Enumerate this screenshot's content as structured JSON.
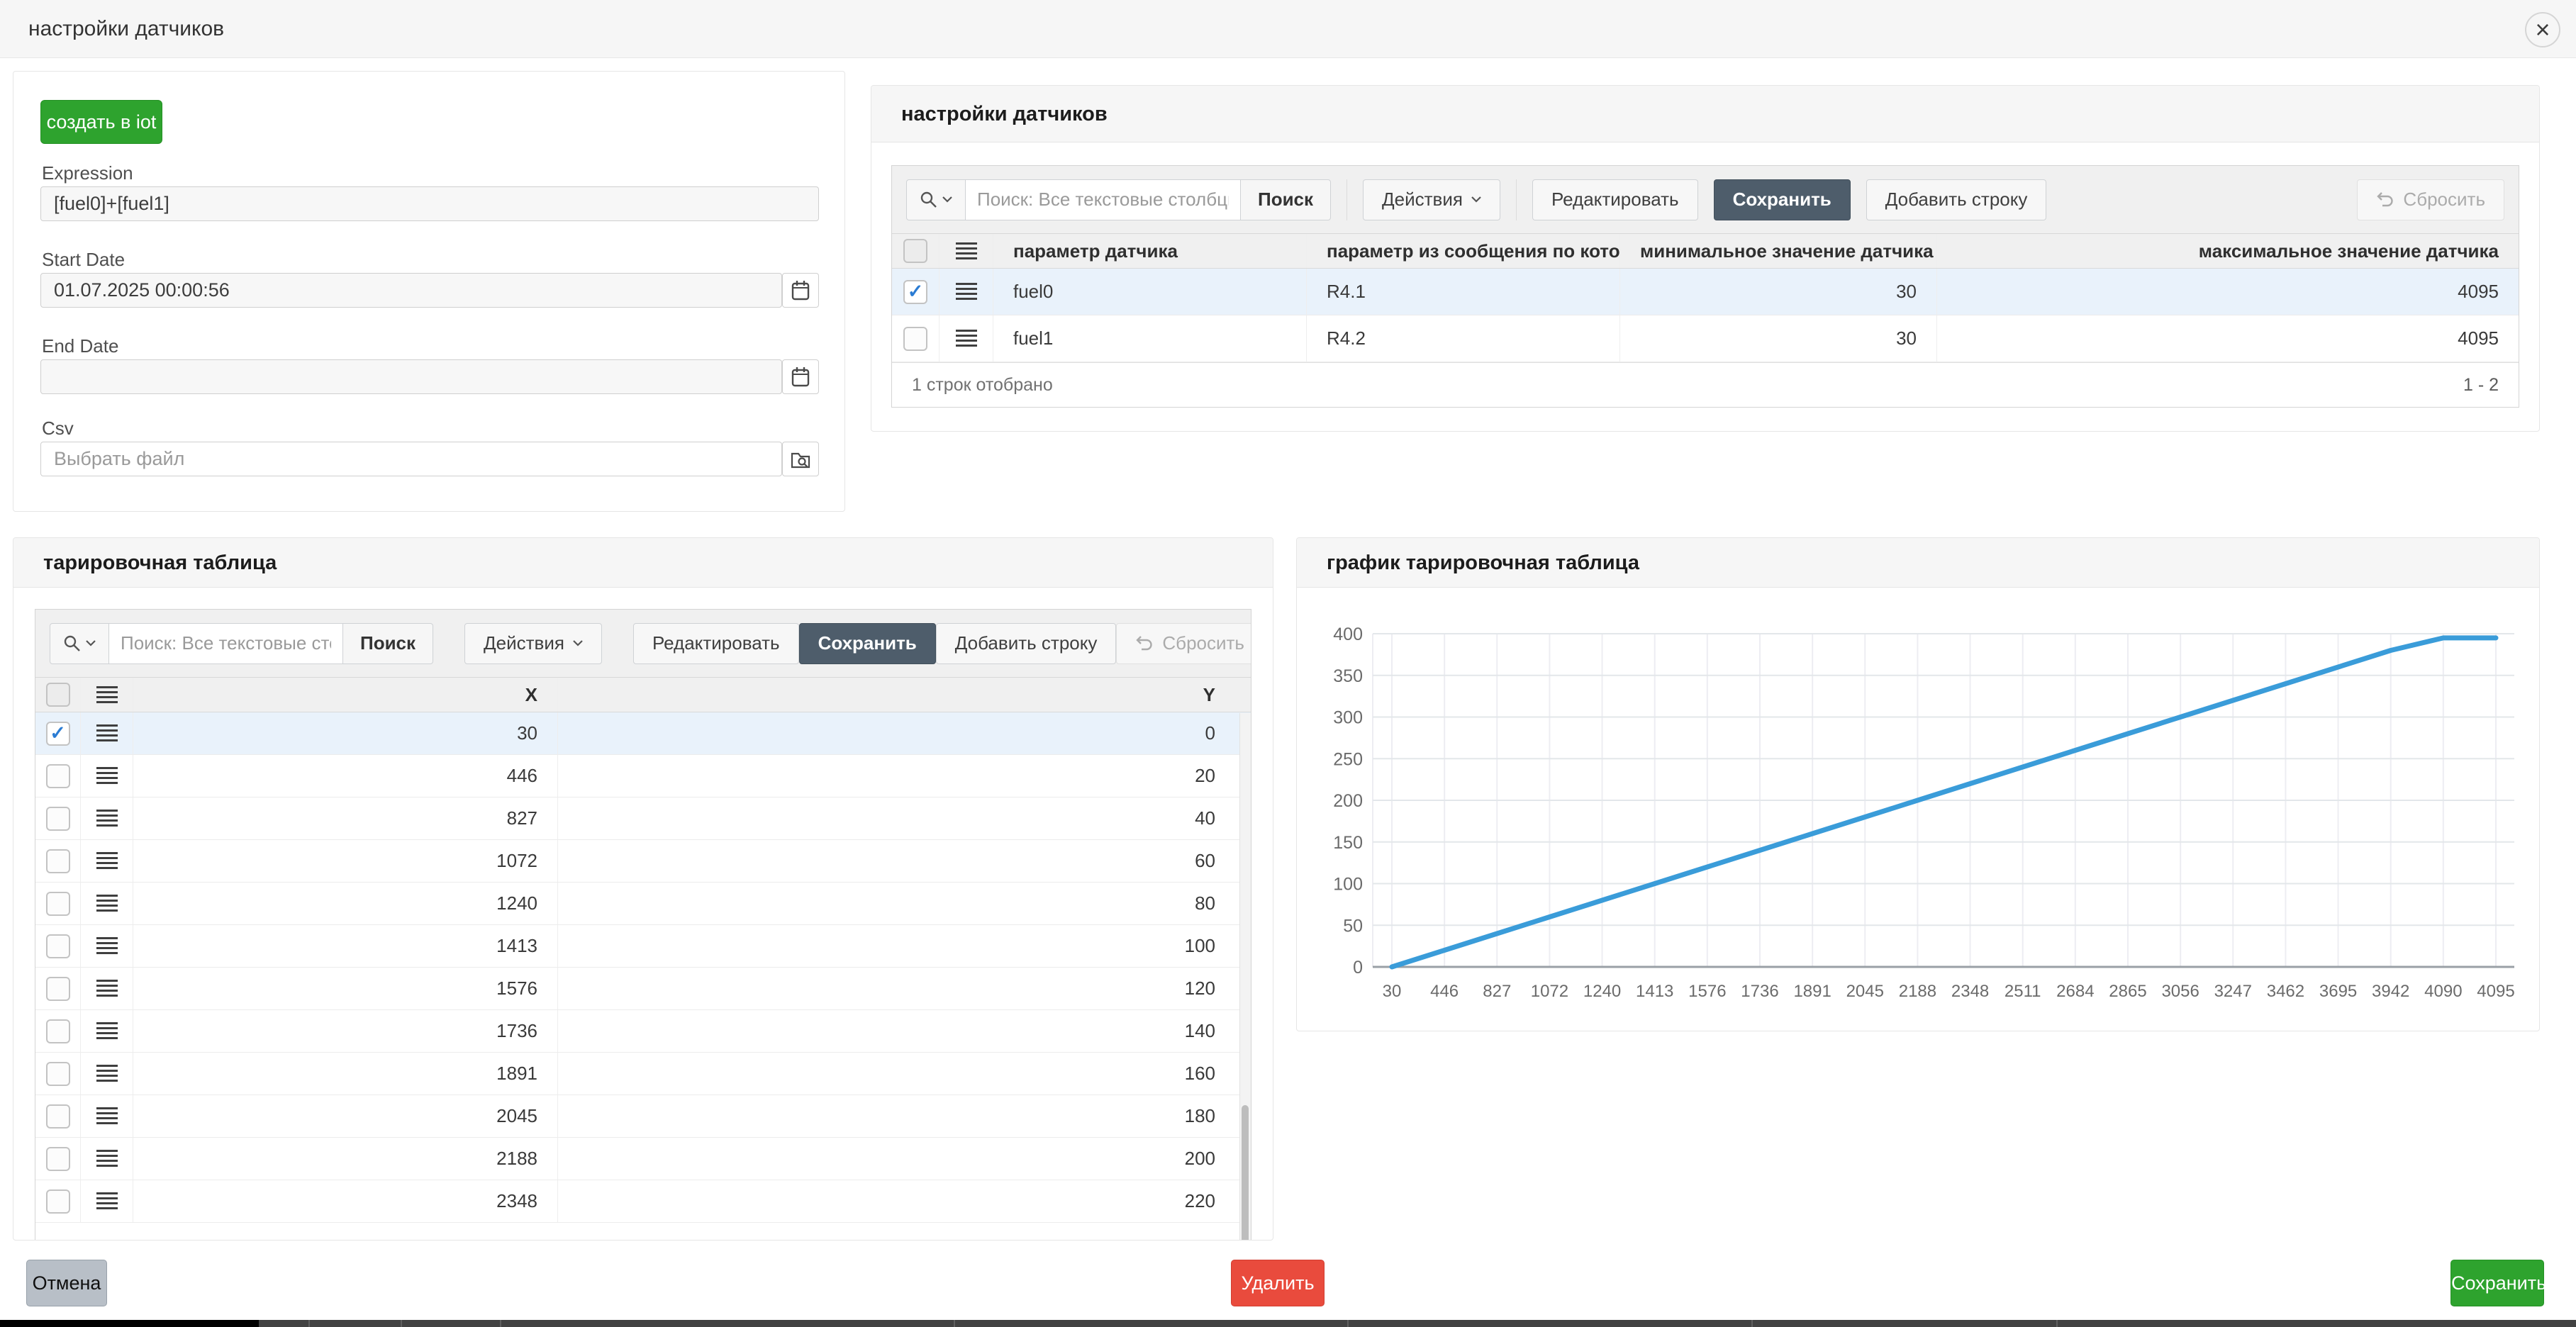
{
  "colors": {
    "accent_green": "#2ea32e",
    "danger_red": "#e94b3d",
    "slate_save": "#4e5d6b",
    "line_blue": "#3a9cd9",
    "row_highlight": "#e9f2fb",
    "check_blue": "#2b7cd3"
  },
  "icons": {
    "check": "✓",
    "close": "×"
  },
  "modal": {
    "title": "настройки датчиков"
  },
  "form": {
    "create_button": "создать в iot",
    "expression_label": "Expression",
    "expression_value": "[fuel0]+[fuel1]",
    "start_date_label": "Start Date",
    "start_date_value": "01.07.2025 00:00:56",
    "end_date_label": "End Date",
    "end_date_value": "",
    "csv_label": "Csv",
    "csv_placeholder": "Выбрать файл"
  },
  "sensors_panel": {
    "title": "настройки датчиков",
    "toolbar": {
      "search_placeholder": "Поиск: Все текстовые столбцы",
      "search": "Поиск",
      "actions": "Действия",
      "edit": "Редактировать",
      "save": "Сохранить",
      "add_row": "Добавить строку",
      "reset": "Сбросить"
    },
    "columns": [
      "параметр датчика",
      "параметр из сообщения по которому п",
      "минимальное значение датчика",
      "максимальное значение датчика"
    ],
    "rows": [
      {
        "checked": true,
        "cells": [
          "fuel0",
          "R4.1",
          "30",
          "4095"
        ]
      },
      {
        "checked": false,
        "cells": [
          "fuel1",
          "R4.2",
          "30",
          "4095"
        ]
      }
    ],
    "selected_text": "1 строк отобрано",
    "range_text": "1 - 2"
  },
  "calibration_panel": {
    "title": "тарировочная таблица",
    "toolbar": {
      "search_placeholder": "Поиск: Все текстовые столбцы",
      "search": "Поиск",
      "actions": "Действия",
      "edit": "Редактировать",
      "save": "Сохранить",
      "add_row": "Добавить строку",
      "reset": "Сбросить"
    },
    "columns": [
      "X",
      "Y"
    ],
    "rows": [
      {
        "checked": true,
        "cells": [
          "30",
          "0"
        ]
      },
      {
        "checked": false,
        "cells": [
          "446",
          "20"
        ]
      },
      {
        "checked": false,
        "cells": [
          "827",
          "40"
        ]
      },
      {
        "checked": false,
        "cells": [
          "1072",
          "60"
        ]
      },
      {
        "checked": false,
        "cells": [
          "1240",
          "80"
        ]
      },
      {
        "checked": false,
        "cells": [
          "1413",
          "100"
        ]
      },
      {
        "checked": false,
        "cells": [
          "1576",
          "120"
        ]
      },
      {
        "checked": false,
        "cells": [
          "1736",
          "140"
        ]
      },
      {
        "checked": false,
        "cells": [
          "1891",
          "160"
        ]
      },
      {
        "checked": false,
        "cells": [
          "2045",
          "180"
        ]
      },
      {
        "checked": false,
        "cells": [
          "2188",
          "200"
        ]
      },
      {
        "checked": false,
        "cells": [
          "2348",
          "220"
        ]
      }
    ]
  },
  "chart_panel": {
    "title": "график тарировочная таблица",
    "chart_data": {
      "type": "line",
      "categories": [
        "30",
        "446",
        "827",
        "1072",
        "1240",
        "1413",
        "1576",
        "1736",
        "1891",
        "2045",
        "2188",
        "2348",
        "2511",
        "2684",
        "2865",
        "3056",
        "3247",
        "3462",
        "3695",
        "3942",
        "4090",
        "4095"
      ],
      "values": [
        0,
        20,
        40,
        60,
        80,
        100,
        120,
        140,
        160,
        180,
        200,
        220,
        240,
        260,
        280,
        300,
        320,
        340,
        360,
        380,
        395,
        395
      ],
      "ylim": [
        0,
        400
      ],
      "yticks": [
        0,
        50,
        100,
        150,
        200,
        250,
        300,
        350,
        400
      ],
      "grid": true,
      "legend": false,
      "line_color": "#3a9cd9",
      "title": "",
      "xlabel": "",
      "ylabel": ""
    }
  },
  "footer": {
    "cancel": "Отмена",
    "delete": "Удалить",
    "save": "Сохранить"
  }
}
